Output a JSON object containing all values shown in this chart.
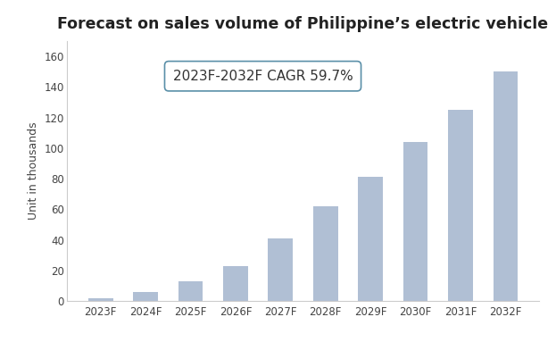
{
  "title": "Forecast on sales volume of Philippine’s electric vehicle",
  "categories": [
    "2023F",
    "2024F",
    "2025F",
    "2026F",
    "2027F",
    "2028F",
    "2029F",
    "2030F",
    "2031F",
    "2032F"
  ],
  "values": [
    2,
    6,
    13,
    23,
    41,
    62,
    81,
    104,
    125,
    150
  ],
  "bar_color": "#b0bfd4",
  "ylabel": "Unit in thousands",
  "ylim": [
    0,
    170
  ],
  "yticks": [
    0,
    20,
    40,
    60,
    80,
    100,
    120,
    140,
    160
  ],
  "annotation_text": "2023F-2032F CAGR 59.7%",
  "annotation_fontsize": 11,
  "title_fontsize": 12.5,
  "ylabel_fontsize": 9,
  "tick_fontsize": 8.5,
  "background_color": "#ffffff",
  "border_color": "#5a8fa8",
  "spine_color": "#cccccc"
}
